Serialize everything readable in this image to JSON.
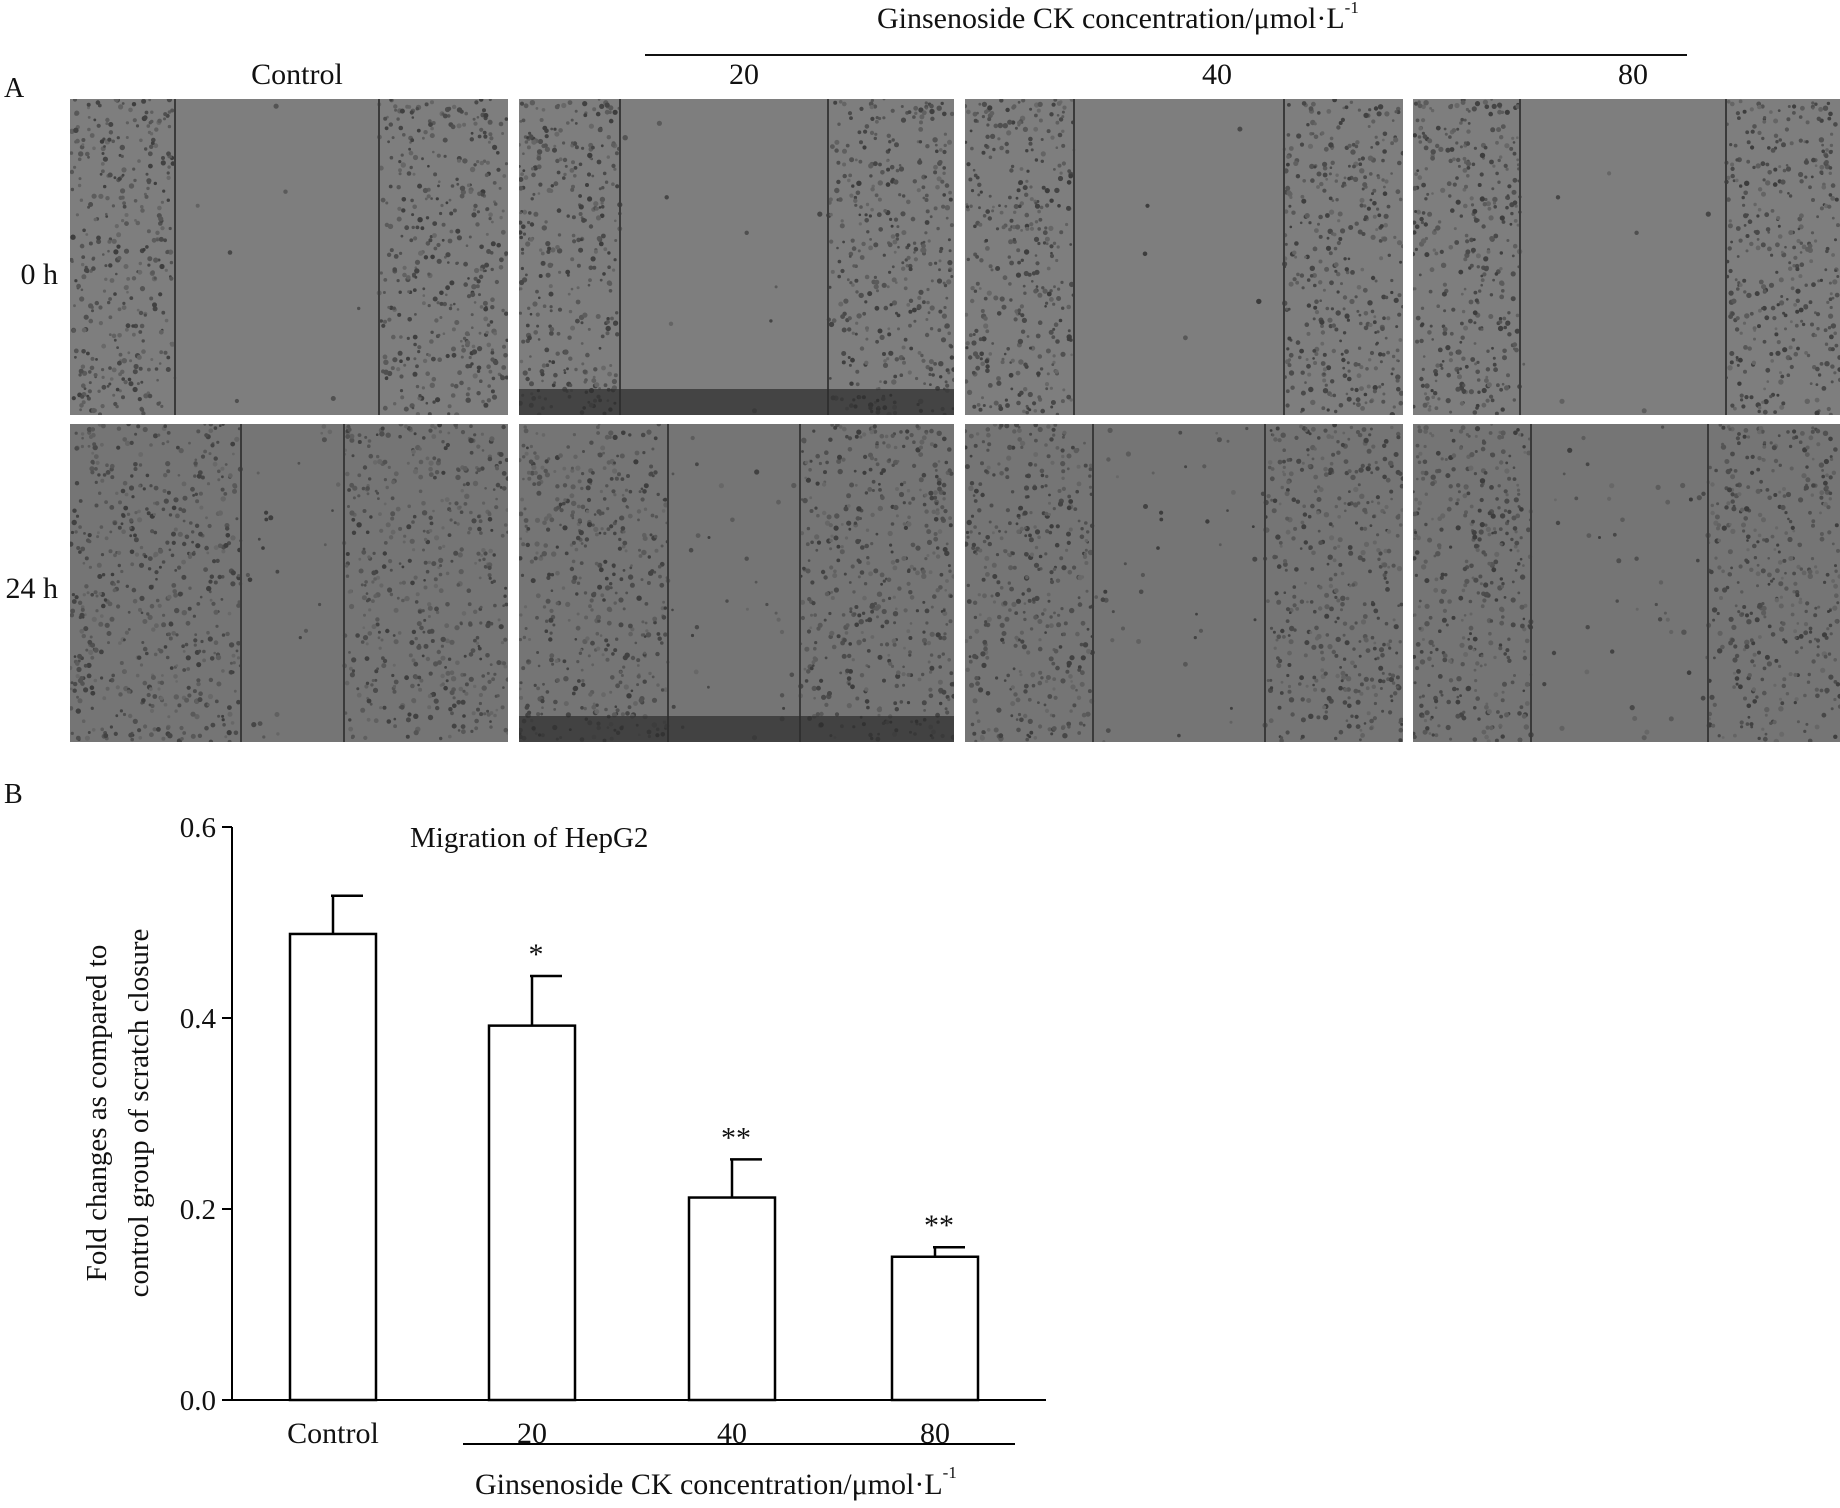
{
  "panel_a": {
    "letter": "A",
    "group_title": "Ginsenoside CK concentration/μmol·L",
    "group_title_sup": "-1",
    "columns": [
      "Control",
      "20",
      "40",
      "80"
    ],
    "rows": [
      "0 h",
      "24 h"
    ]
  },
  "panel_b": {
    "letter": "B",
    "group_label": "Ginsenoside CK concentration/μmol·L",
    "group_label_sup": "-1"
  },
  "chart_data": {
    "type": "bar",
    "title": "Migration of HepG2",
    "categories": [
      "Control",
      "20",
      "40",
      "80"
    ],
    "values": [
      0.488,
      0.392,
      0.212,
      0.15
    ],
    "errors": [
      0.04,
      0.052,
      0.04,
      0.01
    ],
    "significance": [
      "",
      "*",
      "**",
      "**"
    ],
    "ylabel_lines": [
      "Fold changes as compared to",
      "control group of scratch closure"
    ],
    "ylim": [
      0,
      0.6
    ],
    "yticks": [
      "0.0",
      "0.2",
      "0.4",
      "0.6"
    ],
    "grid": false,
    "bar_fill": "#ffffff",
    "bar_stroke": "#000000"
  }
}
